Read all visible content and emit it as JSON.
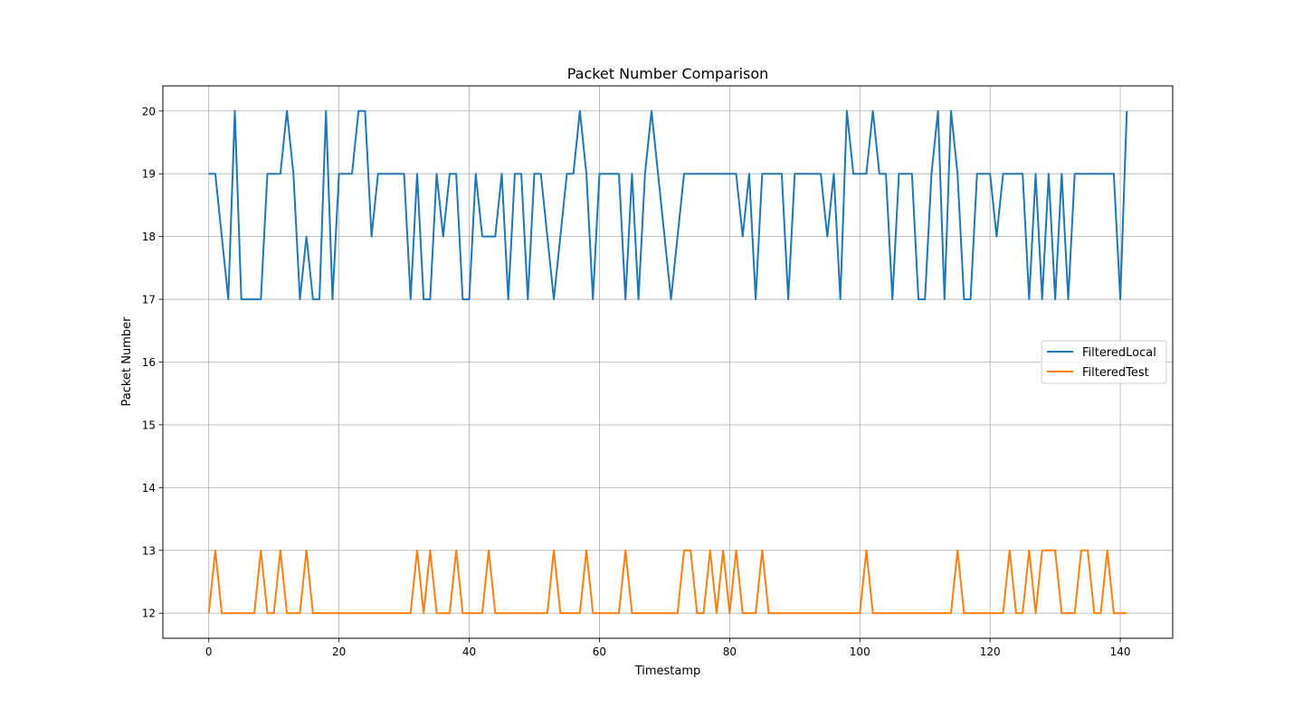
{
  "chart_data": {
    "type": "line",
    "title": "Packet Number Comparison",
    "xlabel": "Timestamp",
    "ylabel": "Packet Number",
    "xlim": [
      -7.05,
      148.05
    ],
    "ylim": [
      11.6,
      20.4
    ],
    "xticks": [
      0,
      20,
      40,
      60,
      80,
      100,
      120,
      140
    ],
    "yticks": [
      12,
      13,
      14,
      15,
      16,
      17,
      18,
      19,
      20
    ],
    "grid": true,
    "legend_position": "center-right",
    "series": [
      {
        "name": "FilteredLocal",
        "color": "#1f77b4",
        "values": [
          19,
          19,
          18,
          17,
          20,
          17,
          17,
          17,
          17,
          19,
          19,
          19,
          20,
          19,
          17,
          18,
          17,
          17,
          20,
          17,
          19,
          19,
          19,
          20,
          20,
          18,
          19,
          19,
          19,
          19,
          19,
          17,
          19,
          17,
          17,
          19,
          18,
          19,
          19,
          17,
          17,
          19,
          18,
          18,
          18,
          19,
          17,
          19,
          19,
          17,
          19,
          19,
          18,
          17,
          18,
          19,
          19,
          20,
          19,
          17,
          19,
          19,
          19,
          19,
          17,
          19,
          17,
          19,
          20,
          19,
          18,
          17,
          18,
          19,
          19,
          19,
          19,
          19,
          19,
          19,
          19,
          19,
          18,
          19,
          17,
          19,
          19,
          19,
          19,
          17,
          19,
          19,
          19,
          19,
          19,
          18,
          19,
          17,
          20,
          19,
          19,
          19,
          20,
          19,
          19,
          17,
          19,
          19,
          19,
          17,
          17,
          19,
          20,
          17,
          20,
          19,
          17,
          17,
          19,
          19,
          19,
          18,
          19,
          19,
          19,
          19,
          17,
          19,
          17,
          19,
          17,
          19,
          17,
          19,
          19,
          19,
          19,
          19,
          19,
          19,
          17,
          20
        ]
      },
      {
        "name": "FilteredTest",
        "color": "#ff7f0e",
        "values": [
          12,
          13,
          12,
          12,
          12,
          12,
          12,
          12,
          13,
          12,
          12,
          13,
          12,
          12,
          12,
          13,
          12,
          12,
          12,
          12,
          12,
          12,
          12,
          12,
          12,
          12,
          12,
          12,
          12,
          12,
          12,
          12,
          13,
          12,
          13,
          12,
          12,
          12,
          13,
          12,
          12,
          12,
          12,
          13,
          12,
          12,
          12,
          12,
          12,
          12,
          12,
          12,
          12,
          13,
          12,
          12,
          12,
          12,
          13,
          12,
          12,
          12,
          12,
          12,
          13,
          12,
          12,
          12,
          12,
          12,
          12,
          12,
          12,
          13,
          13,
          12,
          12,
          13,
          12,
          13,
          12,
          13,
          12,
          12,
          12,
          13,
          12,
          12,
          12,
          12,
          12,
          12,
          12,
          12,
          12,
          12,
          12,
          12,
          12,
          12,
          12,
          13,
          12,
          12,
          12,
          12,
          12,
          12,
          12,
          12,
          12,
          12,
          12,
          12,
          12,
          13,
          12,
          12,
          12,
          12,
          12,
          12,
          12,
          13,
          12,
          12,
          13,
          12,
          13,
          13,
          13,
          12,
          12,
          12,
          13,
          13,
          12,
          12,
          13,
          12,
          12,
          12
        ]
      }
    ]
  }
}
